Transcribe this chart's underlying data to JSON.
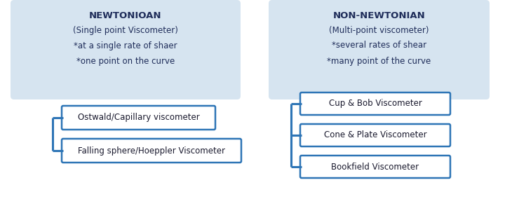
{
  "bg_color": "#ffffff",
  "box_bg_light": "#d6e4f0",
  "box_border_blue": "#2e75b6",
  "box_text_dark": "#1f2d5a",
  "box_text_subtitle": "#1f2d5a",
  "line_color": "#2e75b6",
  "left_title": "NEWTONIOAN",
  "left_line1": "(Single point Viscometer)",
  "left_line2": "*at a single rate of shaer",
  "left_line3": "*one point on the curve",
  "left_items": [
    "Ostwald/Capillary viscometer",
    "Falling sphere/Hoeppler Viscometer"
  ],
  "right_title": "NON-NEWTONIAN",
  "right_line1": "(Multi-point viscometer)",
  "right_line2": "*several rates of shear",
  "right_line3": "*many point of the curve",
  "right_items": [
    "Cup & Bob Viscometer",
    "Cone & Plate Viscometer",
    "Bookfield Viscometer"
  ],
  "fig_w": 7.3,
  "fig_h": 2.94,
  "dpi": 100
}
